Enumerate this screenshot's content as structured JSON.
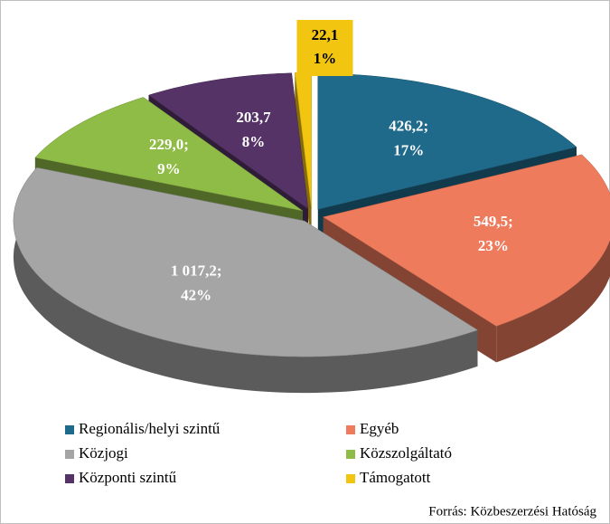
{
  "chart_data": {
    "type": "pie",
    "categories": [
      "Regionális/helyi szintű",
      "Egyéb",
      "Közjogi",
      "Közszolgáltató",
      "Központi szintű",
      "Támogatott"
    ],
    "values": [
      426.2,
      549.5,
      1017.2,
      229.0,
      203.7,
      22.1
    ],
    "value_labels": [
      "426,2;",
      "549,5;",
      "1 017,2;",
      "229,0;",
      "203,7",
      "22,1"
    ],
    "percents": [
      17,
      23,
      42,
      9,
      8,
      1
    ],
    "percent_labels": [
      "17%",
      "23%",
      "42%",
      "9%",
      "8%",
      "1%"
    ],
    "colors": [
      "#1f6a8a",
      "#ef7b5d",
      "#a5a5a5",
      "#8fbb47",
      "#553366",
      "#f2c511"
    ],
    "legend": "bottom",
    "source": "Forrás: Közbeszerzési Hatóság"
  }
}
